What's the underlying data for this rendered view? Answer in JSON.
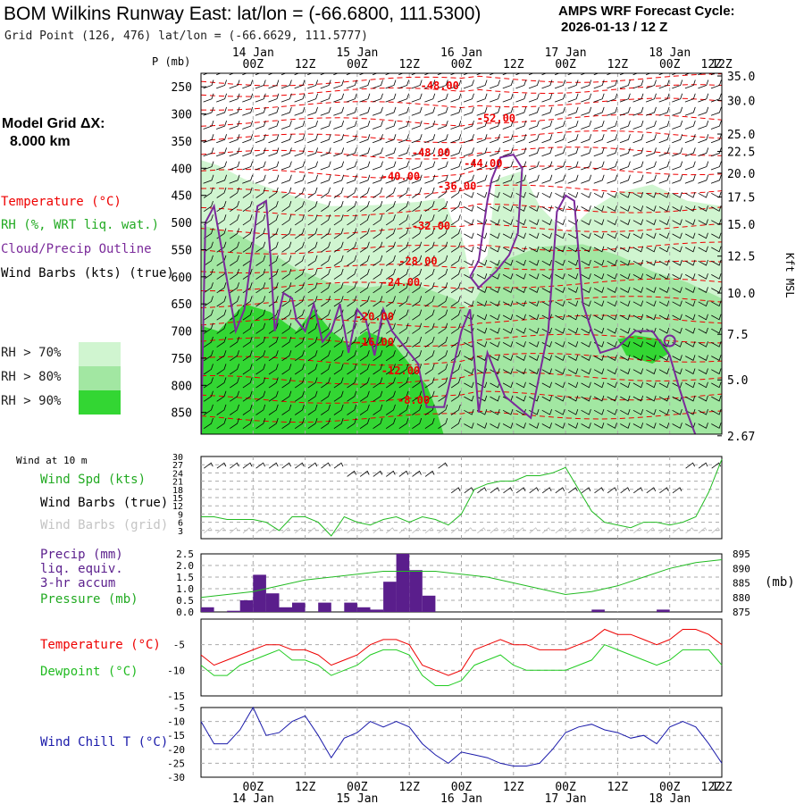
{
  "header": {
    "title": "BOM Wilkins Runway East:  lat/lon = (-66.6800, 111.5300)",
    "subtitle": "Grid Point (126, 476) lat/lon = (-66.6629, 111.5777)",
    "cycle_line1": "AMPS WRF Forecast Cycle:",
    "cycle_line2": "2026-01-13 / 12  Z",
    "model_grid_line1": "Model Grid ΔX:",
    "model_grid_line2": "8.000 km"
  },
  "colors": {
    "temperature": "#ee0000",
    "rh": "#22bb22",
    "cloud": "#7a2a9a",
    "wind_barbs": "#000000",
    "wind_grid": "#bbbbbb",
    "pressure": "#22bb22",
    "precip": "#5a1e8c",
    "dewpoint": "#22cc22",
    "wind_chill": "#1a1aaa",
    "rh70": "#d0f5d0",
    "rh80": "#a2e7a2",
    "rh90": "#33d633"
  },
  "time_axis": {
    "hour_labels": [
      "00Z",
      "12Z",
      "00Z",
      "12Z",
      "00Z",
      "12Z",
      "00Z",
      "12Z",
      "00Z",
      "12Z"
    ],
    "hour_values": [
      12,
      24,
      36,
      48,
      60,
      72,
      84,
      96,
      108,
      120
    ],
    "date_labels": [
      "14 Jan",
      "15 Jan",
      "16 Jan",
      "17 Jan",
      "18 Jan"
    ],
    "date_hours": [
      12,
      36,
      60,
      84,
      108
    ]
  },
  "legend": {
    "temperature": "Temperature (°C)",
    "rh": "RH (%, WRT liq. wat.)",
    "cloud": "Cloud/Precip Outline",
    "wind": "Wind Barbs (kts) (true)",
    "rh70": "RH > 70%",
    "rh80": "RH > 80%",
    "rh90": "RH > 90%"
  },
  "chart_data": [
    {
      "type": "heatmap",
      "name": "cross-section",
      "x_range_hours": [
        0,
        120
      ],
      "pressure_axis": {
        "label": "P (mb)",
        "ticks": [
          250,
          300,
          350,
          400,
          450,
          500,
          550,
          600,
          650,
          700,
          750,
          800,
          850
        ],
        "range": [
          225,
          890
        ]
      },
      "height_axis": {
        "label": "Kft MSL",
        "ticks": [
          "35.0",
          "30.0",
          "25.0",
          "22.5",
          "20.0",
          "17.5",
          "15.0",
          "12.5",
          "10.0",
          "7.5",
          "5.0",
          "2.67"
        ],
        "tick_pressures": [
          230,
          275,
          337,
          369,
          409,
          453,
          503,
          562,
          630,
          706,
          790,
          893
        ]
      },
      "temperature_labels": [
        {
          "text": "-48.00",
          "hour": 55,
          "p": 255
        },
        {
          "text": "-52.00",
          "hour": 68,
          "p": 315
        },
        {
          "text": "-48.00",
          "hour": 53,
          "p": 378
        },
        {
          "text": "-44.00",
          "hour": 65,
          "p": 398
        },
        {
          "text": "-40.00",
          "hour": 46,
          "p": 422
        },
        {
          "text": "-36.00",
          "hour": 59,
          "p": 440
        },
        {
          "text": "-32.00",
          "hour": 53,
          "p": 513
        },
        {
          "text": "-28.00",
          "hour": 50,
          "p": 578
        },
        {
          "text": "-24.00",
          "hour": 46,
          "p": 617
        },
        {
          "text": "-20.00",
          "hour": 40,
          "p": 680
        },
        {
          "text": "-16.00",
          "hour": 40,
          "p": 727
        },
        {
          "text": "-12.00",
          "hour": 46,
          "p": 780
        },
        {
          "text": "-8.00",
          "hour": 49,
          "p": 834
        }
      ]
    },
    {
      "type": "line",
      "name": "wind",
      "title": "Wind at 10 m",
      "series_label": "Wind Spd (kts)",
      "barbs_true_label": "Wind Barbs (true)",
      "barbs_grid_label": "Wind Barbs (grid)",
      "y_ticks": [
        3,
        6,
        9,
        12,
        15,
        18,
        21,
        24,
        27,
        30
      ],
      "ylim": [
        0,
        30
      ],
      "x": [
        0,
        3,
        6,
        9,
        12,
        15,
        18,
        21,
        24,
        27,
        30,
        33,
        36,
        39,
        42,
        45,
        48,
        51,
        54,
        57,
        60,
        63,
        66,
        69,
        72,
        75,
        78,
        81,
        84,
        87,
        90,
        93,
        96,
        99,
        102,
        105,
        108,
        111,
        114,
        117,
        120
      ],
      "values": [
        8,
        8,
        7,
        7,
        7,
        6,
        3,
        8,
        8,
        6,
        1,
        8,
        6,
        5,
        7,
        8,
        6,
        8,
        7,
        5,
        9,
        18,
        20,
        21,
        21,
        23,
        23,
        24,
        26,
        18,
        10,
        6,
        5,
        4,
        6,
        6,
        5,
        6,
        8,
        17,
        29
      ]
    },
    {
      "type": "bar",
      "name": "precip-pressure",
      "precip_label_lines": [
        "Precip (mm)",
        "liq. equiv.",
        "3-hr accum"
      ],
      "pressure_label": "Pressure (mb)",
      "y2_label": "(mb)",
      "precip_ticks": [
        "0.0",
        "0.5",
        "1.0",
        "1.5",
        "2.0",
        "2.5"
      ],
      "precip_ylim": [
        0,
        2.5
      ],
      "precip_bar_hours": [
        0,
        3,
        6,
        9,
        12,
        15,
        18,
        21,
        24,
        27,
        30,
        33,
        36,
        39,
        42,
        45,
        48,
        51,
        54,
        57,
        60,
        63,
        66,
        69,
        72,
        75,
        78,
        81,
        84,
        87,
        90,
        93,
        96,
        99,
        102,
        105,
        108,
        111,
        114,
        117
      ],
      "precip_values": [
        0.2,
        0,
        0.05,
        0.5,
        1.6,
        0.8,
        0.2,
        0.4,
        0,
        0.4,
        0,
        0.4,
        0.2,
        0.1,
        1.3,
        2.5,
        1.8,
        0.7,
        0,
        0,
        0,
        0,
        0,
        0,
        0,
        0,
        0,
        0,
        0,
        0,
        0.1,
        0,
        0,
        0,
        0,
        0.1,
        0,
        0,
        0,
        0
      ],
      "pressure_ticks": [
        875,
        880,
        885,
        890,
        895
      ],
      "pressure_ylim": [
        875,
        895
      ],
      "pressure_x": [
        0,
        6,
        12,
        18,
        24,
        30,
        36,
        42,
        48,
        54,
        60,
        66,
        72,
        78,
        84,
        90,
        96,
        102,
        108,
        114,
        120
      ],
      "pressure_values": [
        880,
        881,
        882,
        884,
        886,
        887,
        888,
        889,
        889,
        889,
        888,
        887,
        885,
        883,
        881,
        882,
        884,
        887,
        890,
        892,
        893
      ]
    },
    {
      "type": "line",
      "name": "temperature-dewpoint",
      "series": [
        {
          "name": "Temperature (°C)",
          "x": [
            0,
            3,
            6,
            9,
            12,
            15,
            18,
            21,
            24,
            27,
            30,
            33,
            36,
            39,
            42,
            45,
            48,
            51,
            54,
            57,
            60,
            63,
            66,
            69,
            72,
            75,
            78,
            81,
            84,
            87,
            90,
            93,
            96,
            99,
            102,
            105,
            108,
            111,
            114,
            117,
            120
          ],
          "values": [
            -7,
            -9,
            -8,
            -7,
            -6,
            -5,
            -5,
            -6,
            -6,
            -7,
            -9,
            -8,
            -7,
            -5,
            -4,
            -4,
            -5,
            -9,
            -10,
            -11,
            -10,
            -6,
            -5,
            -4,
            -5,
            -5,
            -6,
            -6,
            -6,
            -5,
            -4,
            -2,
            -3,
            -3,
            -4,
            -5,
            -4,
            -2,
            -2,
            -3,
            -5
          ]
        },
        {
          "name": "Dewpoint (°C)",
          "x": [
            0,
            3,
            6,
            9,
            12,
            15,
            18,
            21,
            24,
            27,
            30,
            33,
            36,
            39,
            42,
            45,
            48,
            51,
            54,
            57,
            60,
            63,
            66,
            69,
            72,
            75,
            78,
            81,
            84,
            87,
            90,
            93,
            96,
            99,
            102,
            105,
            108,
            111,
            114,
            117,
            120
          ],
          "values": [
            -9,
            -11,
            -11,
            -9,
            -8,
            -7,
            -6,
            -8,
            -8,
            -9,
            -11,
            -10,
            -9,
            -7,
            -6,
            -6,
            -7,
            -11,
            -13,
            -13,
            -12,
            -9,
            -8,
            -7,
            -9,
            -10,
            -10,
            -10,
            -10,
            -9,
            -8,
            -5,
            -6,
            -7,
            -8,
            -9,
            -8,
            -6,
            -6,
            -6,
            -9
          ]
        }
      ],
      "y_ticks": [
        -15,
        -10,
        -5
      ],
      "ylim": [
        -15,
        0
      ]
    },
    {
      "type": "line",
      "name": "wind-chill",
      "series_label": "Wind Chill T (°C)",
      "y_ticks": [
        -30,
        -25,
        -20,
        -15,
        -10,
        -5
      ],
      "ylim": [
        -30,
        -5
      ],
      "x": [
        0,
        3,
        6,
        9,
        12,
        15,
        18,
        21,
        24,
        27,
        30,
        33,
        36,
        39,
        42,
        45,
        48,
        51,
        54,
        57,
        60,
        63,
        66,
        69,
        72,
        75,
        78,
        81,
        84,
        87,
        90,
        93,
        96,
        99,
        102,
        105,
        108,
        111,
        114,
        117,
        120
      ],
      "values": [
        -10,
        -18,
        -18,
        -13,
        -5,
        -15,
        -14,
        -10,
        -8,
        -15,
        -23,
        -16,
        -14,
        -10,
        -12,
        -10,
        -12,
        -18,
        -22,
        -25,
        -21,
        -22,
        -23,
        -25,
        -26,
        -26,
        -25,
        -20,
        -14,
        -12,
        -11,
        -13,
        -14,
        -16,
        -15,
        -18,
        -12,
        -10,
        -12,
        -18,
        -25
      ]
    }
  ]
}
